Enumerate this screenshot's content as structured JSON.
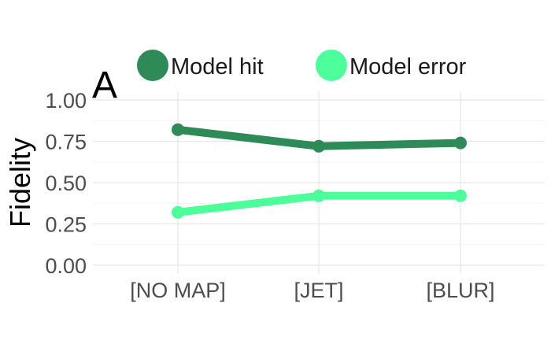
{
  "chart_data": {
    "type": "line",
    "panel_label": "A",
    "ylabel": "Fidelity",
    "xlabel": "",
    "categories": [
      "[NO MAP]",
      "[JET]",
      "[BLUR]"
    ],
    "ylim": [
      0,
      1
    ],
    "yticks": [
      0,
      0.25,
      0.5,
      0.75,
      1.0
    ],
    "ytick_labels": [
      "0.00",
      "0.25",
      "0.50",
      "0.75",
      "1.00"
    ],
    "grid": true,
    "legend_position": "top",
    "series": [
      {
        "name": "Model hit",
        "color": "#2e8b57",
        "values": [
          0.82,
          0.72,
          0.74
        ]
      },
      {
        "name": "Model error",
        "color": "#4dff9a",
        "values": [
          0.32,
          0.42,
          0.42
        ]
      }
    ]
  }
}
